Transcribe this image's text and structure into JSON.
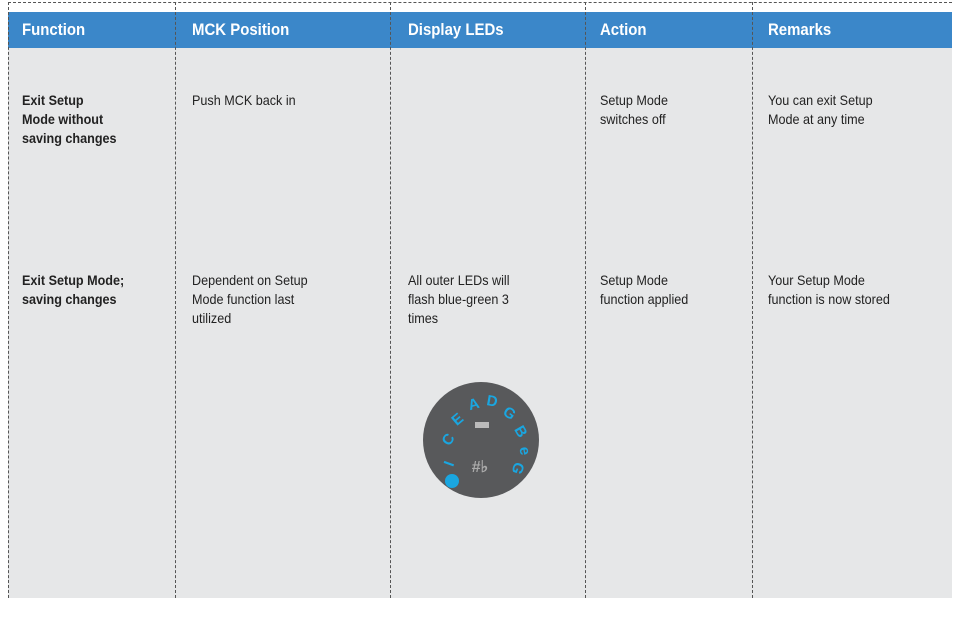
{
  "table": {
    "headers": [
      "Function",
      "MCK Position",
      "Display LEDs",
      "Action",
      "Remarks"
    ],
    "rows": [
      [
        [
          "Exit Setup",
          "Mode without",
          "saving changes"
        ],
        [
          "Push MCK back in"
        ],
        [],
        [
          "Setup Mode",
          "switches off"
        ],
        [
          "You can exit Setup",
          "Mode at any time"
        ]
      ],
      [
        [
          "Exit Setup Mode;",
          "saving changes"
        ],
        [
          "Dependent on Setup",
          "Mode function last",
          "utilized"
        ],
        [
          "All outer LEDs will",
          "flash blue-green 3",
          "times"
        ],
        [
          "Setup Mode",
          "function applied"
        ],
        [
          "Your Setup Mode",
          "function is now stored"
        ]
      ]
    ]
  },
  "dial": {
    "letters": [
      "I",
      "C",
      "E",
      "A",
      "D",
      "G",
      "B",
      "e",
      "G"
    ],
    "symbols": "#♭"
  }
}
